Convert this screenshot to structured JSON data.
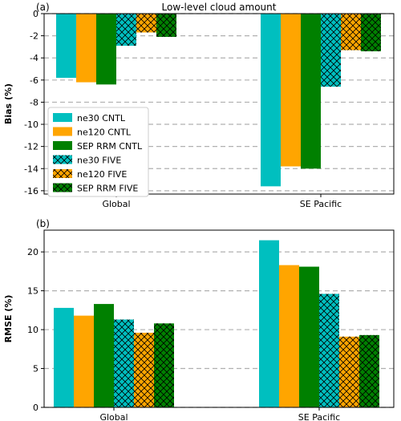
{
  "colors": {
    "cyan": "#00bfbf",
    "orange": "#ffa500",
    "green": "#008000",
    "grid": "#b0b0b0"
  },
  "chart_data": [
    {
      "type": "bar",
      "panel_label": "(a)",
      "title": "Low-level cloud amount",
      "ylabel": "Bias (%)",
      "xlabel": "",
      "categories": [
        "Global",
        "SE Pacific"
      ],
      "ylim": [
        -16.3,
        0
      ],
      "yticks": [
        0,
        -2,
        -4,
        -6,
        -8,
        -10,
        -12,
        -14,
        -16
      ],
      "grid": "horizontal dashed",
      "legend_placement": "lower-left",
      "series": [
        {
          "name": "ne30 CNTL",
          "color": "cyan",
          "hatch": false,
          "values": [
            -5.8,
            -15.6
          ]
        },
        {
          "name": "ne120 CNTL",
          "color": "orange",
          "hatch": false,
          "values": [
            -6.2,
            -13.8
          ]
        },
        {
          "name": "SEP RRM CNTL",
          "color": "green",
          "hatch": false,
          "values": [
            -6.4,
            -14.0
          ]
        },
        {
          "name": "ne30 FIVE",
          "color": "cyan",
          "hatch": true,
          "values": [
            -2.9,
            -6.6
          ]
        },
        {
          "name": "ne120 FIVE",
          "color": "orange",
          "hatch": true,
          "values": [
            -1.7,
            -3.3
          ]
        },
        {
          "name": "SEP RRM FIVE",
          "color": "green",
          "hatch": true,
          "values": [
            -2.1,
            -3.4
          ]
        }
      ]
    },
    {
      "type": "bar",
      "panel_label": "(b)",
      "title": "",
      "ylabel": "RMSE (%)",
      "xlabel": "",
      "categories": [
        "Global",
        "SE Pacific"
      ],
      "ylim": [
        0,
        22.8
      ],
      "yticks": [
        0,
        5,
        10,
        15,
        20
      ],
      "grid": "horizontal dashed",
      "series": [
        {
          "name": "ne30 CNTL",
          "color": "cyan",
          "hatch": false,
          "values": [
            12.8,
            21.5
          ]
        },
        {
          "name": "ne120 CNTL",
          "color": "orange",
          "hatch": false,
          "values": [
            11.8,
            18.3
          ]
        },
        {
          "name": "SEP RRM CNTL",
          "color": "green",
          "hatch": false,
          "values": [
            13.3,
            18.1
          ]
        },
        {
          "name": "ne30 FIVE",
          "color": "cyan",
          "hatch": true,
          "values": [
            11.3,
            14.6
          ]
        },
        {
          "name": "ne120 FIVE",
          "color": "orange",
          "hatch": true,
          "values": [
            9.6,
            9.1
          ]
        },
        {
          "name": "SEP RRM FIVE",
          "color": "green",
          "hatch": true,
          "values": [
            10.8,
            9.3
          ]
        }
      ]
    }
  ]
}
